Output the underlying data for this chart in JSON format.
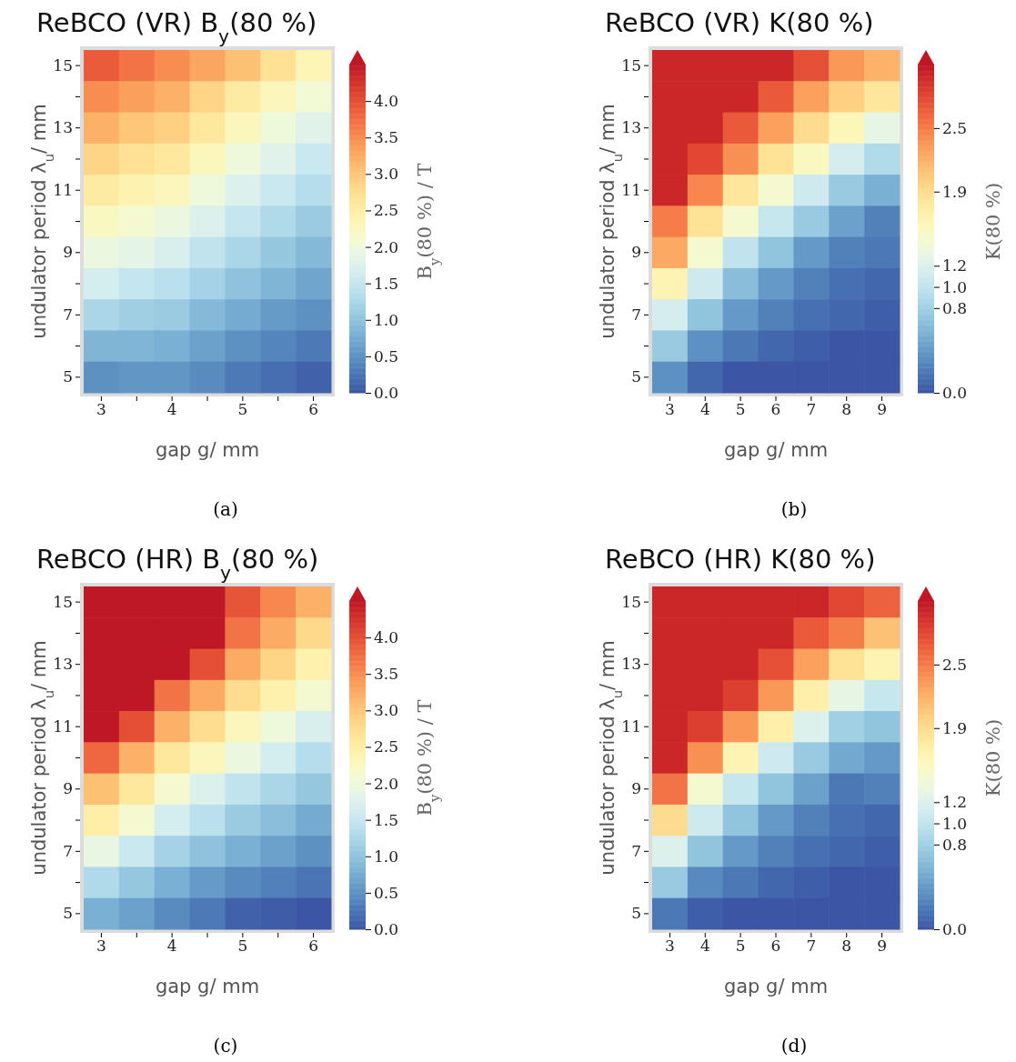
{
  "chart_data": [
    {
      "type": "heatmap",
      "title": "ReBCO (VR) B$_{y}$(80 %)",
      "xlabel": "gap g/ mm",
      "ylabel": "undulator period λ$_{u}$/ mm",
      "clabel": "B$_{y}$(80 %) / T",
      "annotations": [
        "(a)"
      ],
      "categories": [
        "3",
        null,
        "4",
        null,
        "5",
        null,
        "6"
      ],
      "y_categories": [
        "15",
        null,
        "13",
        null,
        "11",
        null,
        "9",
        null,
        "7",
        null,
        "5"
      ],
      "cells": [
        [
          3.9,
          3.7,
          3.5,
          3.3,
          3.05,
          2.7,
          2.35
        ],
        [
          3.5,
          3.35,
          3.2,
          2.85,
          2.55,
          2.3,
          2.05
        ],
        [
          3.2,
          3.0,
          2.9,
          2.6,
          2.3,
          2.0,
          1.8
        ],
        [
          2.85,
          2.7,
          2.6,
          2.3,
          2.0,
          1.8,
          1.55
        ],
        [
          2.55,
          2.4,
          2.3,
          2.0,
          1.75,
          1.55,
          1.35
        ],
        [
          2.25,
          2.1,
          1.95,
          1.75,
          1.5,
          1.3,
          1.1
        ],
        [
          1.95,
          1.85,
          1.7,
          1.45,
          1.25,
          1.05,
          0.9
        ],
        [
          1.65,
          1.5,
          1.4,
          1.2,
          1.0,
          0.85,
          0.7
        ],
        [
          1.25,
          1.15,
          1.1,
          0.9,
          0.75,
          0.6,
          0.5
        ],
        [
          0.85,
          0.85,
          0.8,
          0.65,
          0.5,
          0.4,
          0.3
        ],
        [
          0.5,
          0.55,
          0.55,
          0.45,
          0.3,
          0.2,
          0.1
        ]
      ],
      "clim": [
        0,
        4.5
      ],
      "cticks": [
        {
          "value": 0,
          "label": "0.0"
        },
        {
          "value": 0.5,
          "label": "0.5"
        },
        {
          "value": 1,
          "label": "1.0"
        },
        {
          "value": 1.5,
          "label": "1.5"
        },
        {
          "value": 2,
          "label": "2.0"
        },
        {
          "value": 2.5,
          "label": "2.5"
        },
        {
          "value": 3,
          "label": "3.0"
        },
        {
          "value": 3.5,
          "label": "3.5"
        },
        {
          "value": 4,
          "label": "4.0"
        }
      ]
    },
    {
      "type": "heatmap",
      "title": "ReBCO (VR) K(80 %)",
      "xlabel": "gap g/ mm",
      "ylabel": "undulator period λ$_{u}$/ mm",
      "clabel": "K(80 %)",
      "annotations": [
        "(b)"
      ],
      "categories": [
        "3",
        "4",
        "5",
        "6",
        "7",
        "8",
        "9"
      ],
      "y_categories": [
        "15",
        null,
        "13",
        null,
        "11",
        null,
        "9",
        null,
        "7",
        null,
        "5"
      ],
      "cells": [
        [
          3.0,
          3.0,
          3.0,
          3.0,
          2.75,
          2.35,
          2.2
        ],
        [
          3.0,
          3.0,
          3.0,
          2.7,
          2.3,
          2.0,
          1.8
        ],
        [
          3.0,
          3.0,
          2.7,
          2.3,
          1.9,
          1.6,
          1.3
        ],
        [
          3.0,
          2.8,
          2.4,
          1.85,
          1.55,
          1.15,
          0.9
        ],
        [
          3.0,
          2.45,
          1.8,
          1.45,
          1.1,
          0.75,
          0.55
        ],
        [
          2.5,
          1.85,
          1.45,
          1.05,
          0.75,
          0.45,
          0.25
        ],
        [
          2.25,
          1.45,
          1.0,
          0.7,
          0.4,
          0.25,
          0.2
        ],
        [
          1.65,
          1.1,
          0.65,
          0.4,
          0.25,
          0.15,
          0.1
        ],
        [
          1.15,
          0.7,
          0.4,
          0.25,
          0.15,
          0.1,
          0.05
        ],
        [
          0.75,
          0.35,
          0.2,
          0.1,
          0.05,
          0.0,
          0.0
        ],
        [
          0.35,
          0.1,
          0.0,
          0.0,
          0.0,
          0.0,
          0.0
        ]
      ],
      "clim": [
        0,
        3.1
      ],
      "cticks": [
        {
          "value": 0,
          "label": "0.0"
        },
        {
          "value": 0.8,
          "label": "0.8"
        },
        {
          "value": 1,
          "label": "1.0"
        },
        {
          "value": 1.2,
          "label": "1.2"
        },
        {
          "value": 1.9,
          "label": "1.9"
        },
        {
          "value": 2.5,
          "label": "2.5"
        }
      ]
    },
    {
      "type": "heatmap",
      "title": "ReBCO (HR) B$_{y}$(80 %)",
      "xlabel": "gap g/ mm",
      "ylabel": "undulator period λ$_{u}$/ mm",
      "clabel": "B$_{y}$(80 %) / T",
      "annotations": [
        "(c)"
      ],
      "categories": [
        "3",
        null,
        "4",
        null,
        "5",
        null,
        "6"
      ],
      "y_categories": [
        "15",
        null,
        "13",
        null,
        "11",
        null,
        "9",
        null,
        "7",
        null,
        "5"
      ],
      "cells": [
        [
          4.5,
          4.5,
          4.5,
          4.5,
          3.95,
          3.55,
          3.2
        ],
        [
          4.5,
          4.5,
          4.5,
          4.5,
          3.7,
          3.25,
          2.8
        ],
        [
          4.5,
          4.5,
          4.5,
          4.0,
          3.25,
          2.85,
          2.45
        ],
        [
          4.5,
          4.5,
          3.7,
          3.25,
          2.75,
          2.45,
          2.1
        ],
        [
          4.5,
          4.0,
          3.2,
          2.75,
          2.3,
          2.0,
          1.7
        ],
        [
          3.8,
          3.2,
          2.6,
          2.3,
          1.95,
          1.65,
          1.35
        ],
        [
          3.05,
          2.6,
          2.1,
          1.75,
          1.45,
          1.25,
          1.05
        ],
        [
          2.5,
          2.1,
          1.65,
          1.4,
          1.1,
          0.95,
          0.75
        ],
        [
          1.9,
          1.55,
          1.2,
          1.0,
          0.8,
          0.65,
          0.5
        ],
        [
          1.3,
          1.05,
          0.8,
          0.6,
          0.45,
          0.35,
          0.25
        ],
        [
          0.8,
          0.65,
          0.45,
          0.3,
          0.1,
          0.05,
          0.0
        ]
      ],
      "clim": [
        0,
        4.5
      ],
      "cticks": [
        {
          "value": 0,
          "label": "0.0"
        },
        {
          "value": 0.5,
          "label": "0.5"
        },
        {
          "value": 1,
          "label": "1.0"
        },
        {
          "value": 1.5,
          "label": "1.5"
        },
        {
          "value": 2,
          "label": "2.0"
        },
        {
          "value": 2.5,
          "label": "2.5"
        },
        {
          "value": 3,
          "label": "3.0"
        },
        {
          "value": 3.5,
          "label": "3.5"
        },
        {
          "value": 4,
          "label": "4.0"
        }
      ]
    },
    {
      "type": "heatmap",
      "title": "ReBCO (HR) K(80 %)",
      "xlabel": "gap g/ mm",
      "ylabel": "undulator period λ$_{u}$/ mm",
      "clabel": "K(80 %)",
      "annotations": [
        "(d)"
      ],
      "categories": [
        "3",
        "4",
        "5",
        "6",
        "7",
        "8",
        "9"
      ],
      "y_categories": [
        "15",
        null,
        "13",
        null,
        "11",
        null,
        "9",
        null,
        "7",
        null,
        "5"
      ],
      "cells": [
        [
          3.0,
          3.0,
          3.0,
          3.0,
          3.0,
          2.8,
          2.65
        ],
        [
          3.0,
          3.0,
          3.0,
          3.0,
          2.7,
          2.5,
          2.1
        ],
        [
          3.0,
          3.0,
          3.0,
          2.75,
          2.3,
          1.85,
          1.65
        ],
        [
          3.0,
          3.0,
          2.85,
          2.35,
          1.7,
          1.3,
          1.05
        ],
        [
          3.0,
          2.85,
          2.35,
          1.7,
          1.2,
          0.8,
          0.7
        ],
        [
          3.0,
          2.4,
          1.65,
          1.1,
          0.75,
          0.5,
          0.4
        ],
        [
          2.55,
          1.45,
          1.05,
          0.7,
          0.45,
          0.2,
          0.25
        ],
        [
          1.9,
          1.1,
          0.7,
          0.4,
          0.25,
          0.15,
          0.1
        ],
        [
          1.2,
          0.7,
          0.4,
          0.25,
          0.15,
          0.1,
          0.05
        ],
        [
          0.75,
          0.3,
          0.2,
          0.1,
          0.05,
          0.0,
          0.0
        ],
        [
          0.2,
          0.05,
          0.0,
          0.0,
          0.0,
          0.0,
          0.0
        ]
      ],
      "clim": [
        0,
        3.1
      ],
      "cticks": [
        {
          "value": 0,
          "label": "0.0"
        },
        {
          "value": 0.8,
          "label": "0.8"
        },
        {
          "value": 1,
          "label": "1.0"
        },
        {
          "value": 1.2,
          "label": "1.2"
        },
        {
          "value": 1.9,
          "label": "1.9"
        },
        {
          "value": 2.5,
          "label": "2.5"
        }
      ]
    }
  ]
}
